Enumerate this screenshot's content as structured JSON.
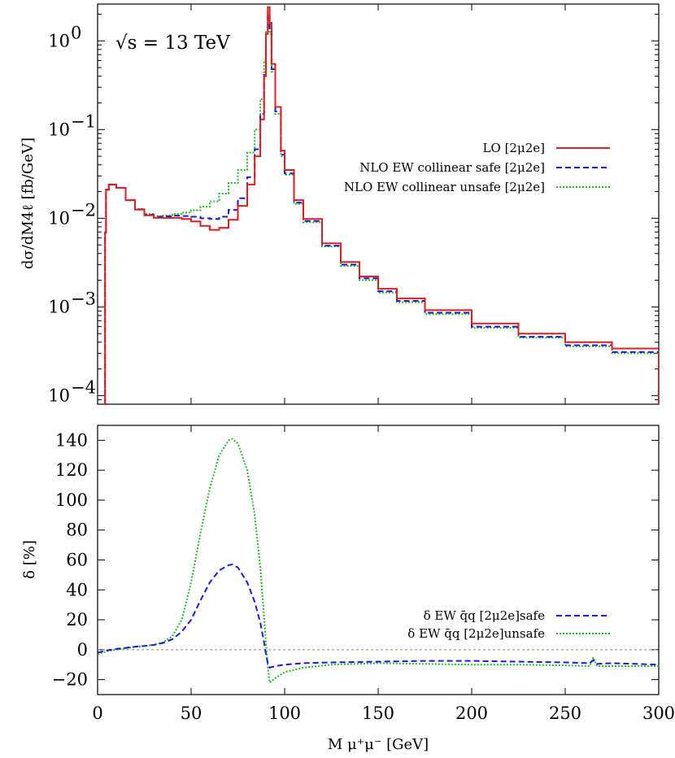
{
  "chart_data": [
    {
      "type": "line",
      "panel": "top",
      "ylabel": "dσ/dM4ℓ [fb/GeV]",
      "yscale": "log",
      "xlim": [
        0,
        300
      ],
      "ylim": [
        8e-05,
        2.6
      ],
      "yticks": [
        {
          "value": 1,
          "label": "10",
          "exp": "0"
        },
        {
          "value": 0.1,
          "label": "10",
          "exp": "−1"
        },
        {
          "value": 0.01,
          "label": "10",
          "exp": "−2"
        },
        {
          "value": 0.001,
          "label": "10",
          "exp": "−3"
        },
        {
          "value": 0.0001,
          "label": "10",
          "exp": "−4"
        }
      ],
      "annotation": "√s = 13 TeV",
      "legend_position": "right",
      "series": [
        {
          "name": "LO  [2μ2e]",
          "color": "#e41a1c",
          "dash": "none",
          "x": [
            4,
            4.5,
            6,
            8,
            10,
            15,
            20,
            25,
            30,
            35,
            40,
            45,
            50,
            55,
            60,
            65,
            70,
            75,
            80,
            84,
            87,
            89,
            90,
            91,
            92,
            93,
            95,
            98,
            100,
            105,
            110,
            120,
            130,
            140,
            150,
            160,
            175,
            200,
            225,
            250,
            275,
            300
          ],
          "y": [
            0.0069,
            0.021,
            0.024,
            0.024,
            0.022,
            0.016,
            0.0125,
            0.0108,
            0.0101,
            0.0101,
            0.0101,
            0.0098,
            0.0092,
            0.0082,
            0.0074,
            0.0078,
            0.0096,
            0.0138,
            0.024,
            0.05,
            0.13,
            0.4,
            1.2,
            2.4,
            1.6,
            0.55,
            0.18,
            0.058,
            0.035,
            0.016,
            0.0098,
            0.0052,
            0.0032,
            0.0022,
            0.0016,
            0.00125,
            0.00092,
            0.00065,
            0.0005,
            0.0004,
            0.00034,
            0.00029
          ]
        },
        {
          "name": "NLO EW collinear safe  [2μ2e]",
          "color": "#1a1adb",
          "dash": "7,4",
          "x": [
            4,
            4.5,
            6,
            8,
            10,
            15,
            20,
            25,
            30,
            35,
            40,
            45,
            50,
            55,
            60,
            65,
            70,
            75,
            80,
            84,
            87,
            89,
            90,
            91,
            92,
            93,
            95,
            98,
            100,
            105,
            110,
            120,
            130,
            140,
            150,
            160,
            175,
            200,
            225,
            250,
            275,
            300
          ],
          "y": [
            0.0069,
            0.021,
            0.024,
            0.024,
            0.022,
            0.016,
            0.0126,
            0.011,
            0.0104,
            0.0105,
            0.0107,
            0.0106,
            0.0104,
            0.01,
            0.0098,
            0.0104,
            0.0124,
            0.0168,
            0.029,
            0.06,
            0.15,
            0.45,
            1.2,
            2.0,
            1.3,
            0.48,
            0.16,
            0.052,
            0.032,
            0.015,
            0.0093,
            0.0049,
            0.003,
            0.0021,
            0.0015,
            0.00117,
            0.00086,
            0.0006,
            0.00046,
            0.00037,
            0.00031,
            0.00027
          ]
        },
        {
          "name": "NLO EW collinear unsafe  [2μ2e]",
          "color": "#22bb22",
          "dash": "2,2",
          "x": [
            4,
            4.5,
            6,
            8,
            10,
            15,
            20,
            25,
            30,
            35,
            40,
            45,
            50,
            55,
            60,
            65,
            70,
            75,
            80,
            84,
            87,
            89,
            90,
            91,
            92,
            93,
            95,
            98,
            100,
            105,
            110,
            120,
            130,
            140,
            150,
            160,
            175,
            200,
            225,
            250,
            275,
            300
          ],
          "y": [
            0.0069,
            0.021,
            0.024,
            0.024,
            0.022,
            0.016,
            0.0127,
            0.0112,
            0.0106,
            0.0108,
            0.0112,
            0.0116,
            0.0123,
            0.0135,
            0.0155,
            0.019,
            0.025,
            0.035,
            0.055,
            0.1,
            0.22,
            0.6,
            1.3,
            2.0,
            1.2,
            0.45,
            0.15,
            0.05,
            0.031,
            0.0145,
            0.009,
            0.0048,
            0.0029,
            0.002,
            0.00145,
            0.00113,
            0.00083,
            0.00058,
            0.00045,
            0.00036,
            0.0003,
            0.00026
          ]
        }
      ]
    },
    {
      "type": "line",
      "panel": "bottom",
      "ylabel": "δ [%]",
      "xlabel": "M μ⁺μ⁻ [GeV]",
      "xlim": [
        0,
        300
      ],
      "ylim": [
        -30,
        150
      ],
      "xticks": [
        0,
        50,
        100,
        150,
        200,
        250,
        300
      ],
      "yticks": [
        -20,
        0,
        20,
        40,
        60,
        80,
        100,
        120,
        140
      ],
      "reference_line": 0,
      "legend_position": "bottom-right",
      "series": [
        {
          "name": "δ EW q̄q [2μ2e]safe",
          "color": "#1a1adb",
          "dash": "7,4",
          "x": [
            0,
            5,
            10,
            15,
            20,
            25,
            30,
            35,
            40,
            45,
            50,
            55,
            60,
            65,
            70,
            72,
            75,
            80,
            84,
            87,
            89,
            90,
            91,
            92,
            95,
            100,
            110,
            125,
            150,
            175,
            200,
            225,
            250,
            263,
            265,
            267,
            275,
            300
          ],
          "y": [
            -2,
            -0.5,
            0.5,
            1.2,
            2,
            2.5,
            3.2,
            4.5,
            7,
            12,
            20,
            33,
            45,
            53,
            56.5,
            57,
            55,
            45,
            32,
            18,
            5,
            -3,
            -9,
            -12,
            -11,
            -10,
            -9,
            -8.5,
            -8,
            -7.5,
            -7.5,
            -8,
            -8.5,
            -9,
            -7,
            -9.5,
            -9,
            -10
          ]
        },
        {
          "name": "δ EW q̄q [2μ2e]unsafe",
          "color": "#22bb22",
          "dash": "2,2",
          "x": [
            0,
            5,
            10,
            15,
            20,
            25,
            30,
            35,
            40,
            45,
            50,
            55,
            60,
            65,
            70,
            72,
            75,
            80,
            84,
            87,
            89,
            90,
            91,
            92,
            95,
            100,
            110,
            125,
            150,
            175,
            200,
            225,
            250,
            263,
            265,
            267,
            275,
            300
          ],
          "y": [
            -3,
            -1,
            0,
            1,
            1.8,
            2.5,
            3.2,
            5,
            9,
            20,
            45,
            78,
            108,
            130,
            140,
            141,
            138,
            120,
            90,
            55,
            22,
            5,
            -12,
            -22,
            -19,
            -15,
            -12,
            -10,
            -9,
            -9.5,
            -10,
            -10,
            -10.5,
            -11,
            -5,
            -11,
            -11,
            -11
          ]
        }
      ]
    }
  ]
}
